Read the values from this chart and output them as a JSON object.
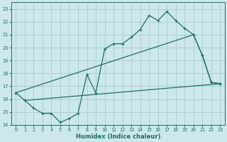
{
  "xlabel": "Humidex (Indice chaleur)",
  "bg_color": "#cce8ea",
  "grid_color": "#aad0d4",
  "line_color": "#1e6e65",
  "xlim": [
    -0.5,
    23.5
  ],
  "ylim": [
    14,
    23.5
  ],
  "yticks": [
    14,
    15,
    16,
    17,
    18,
    19,
    20,
    21,
    22,
    23
  ],
  "xticks": [
    0,
    1,
    2,
    3,
    4,
    5,
    6,
    7,
    8,
    9,
    10,
    11,
    12,
    13,
    14,
    15,
    16,
    17,
    18,
    19,
    20,
    21,
    22,
    23
  ],
  "line1_x": [
    0,
    1,
    2,
    3,
    4,
    5,
    6,
    7,
    8,
    9,
    10,
    11,
    12,
    13,
    14,
    15,
    16,
    17,
    18,
    19,
    20,
    21,
    22,
    23
  ],
  "line1_y": [
    16.5,
    15.9,
    15.3,
    14.9,
    14.9,
    14.2,
    14.5,
    14.9,
    17.9,
    16.5,
    19.9,
    20.3,
    20.3,
    20.8,
    21.4,
    22.5,
    22.1,
    22.8,
    22.1,
    21.5,
    21.0,
    19.4,
    17.3,
    17.2
  ],
  "line2_x": [
    0,
    20,
    21,
    22,
    23
  ],
  "line2_y": [
    16.5,
    21.0,
    19.4,
    17.3,
    17.2
  ],
  "line3_x": [
    1,
    23
  ],
  "line3_y": [
    15.9,
    17.2
  ]
}
